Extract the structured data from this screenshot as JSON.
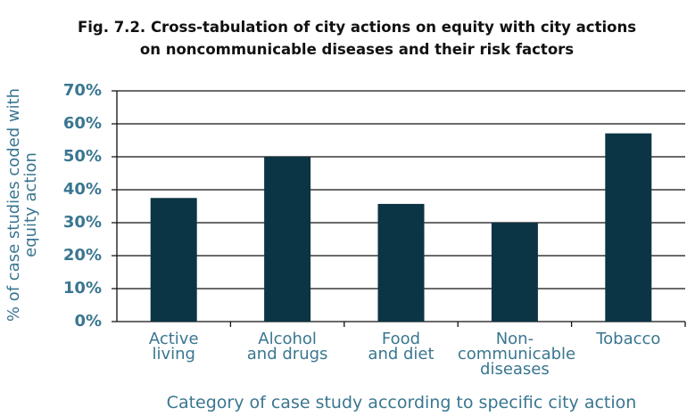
{
  "chart_data": {
    "type": "bar",
    "title": "Fig. 7.2. Cross-tabulation of city actions on equity with city actions\non noncommunicable diseases and their risk factors",
    "categories": [
      "Active\nliving",
      "Alcohol\nand drugs",
      "Food\nand diet",
      "Non-\ncommunicable\ndiseases",
      "Tobacco"
    ],
    "values": [
      37.5,
      50,
      35.7,
      30,
      57.1
    ],
    "color": "#0b3545",
    "ylim": [
      0,
      70
    ],
    "yticks": [
      {
        "value": 0,
        "label": "0%"
      },
      {
        "value": 10,
        "label": "10%"
      },
      {
        "value": 20,
        "label": "20%"
      },
      {
        "value": 30,
        "label": "30%"
      },
      {
        "value": 40,
        "label": "40%"
      },
      {
        "value": 50,
        "label": "50%"
      },
      {
        "value": 60,
        "label": "60%"
      },
      {
        "value": 70,
        "label": "70%"
      }
    ],
    "grid": true,
    "x_label": "Category of case study according to specific city action",
    "y_label": "% of case studies coded with\nequity action"
  }
}
